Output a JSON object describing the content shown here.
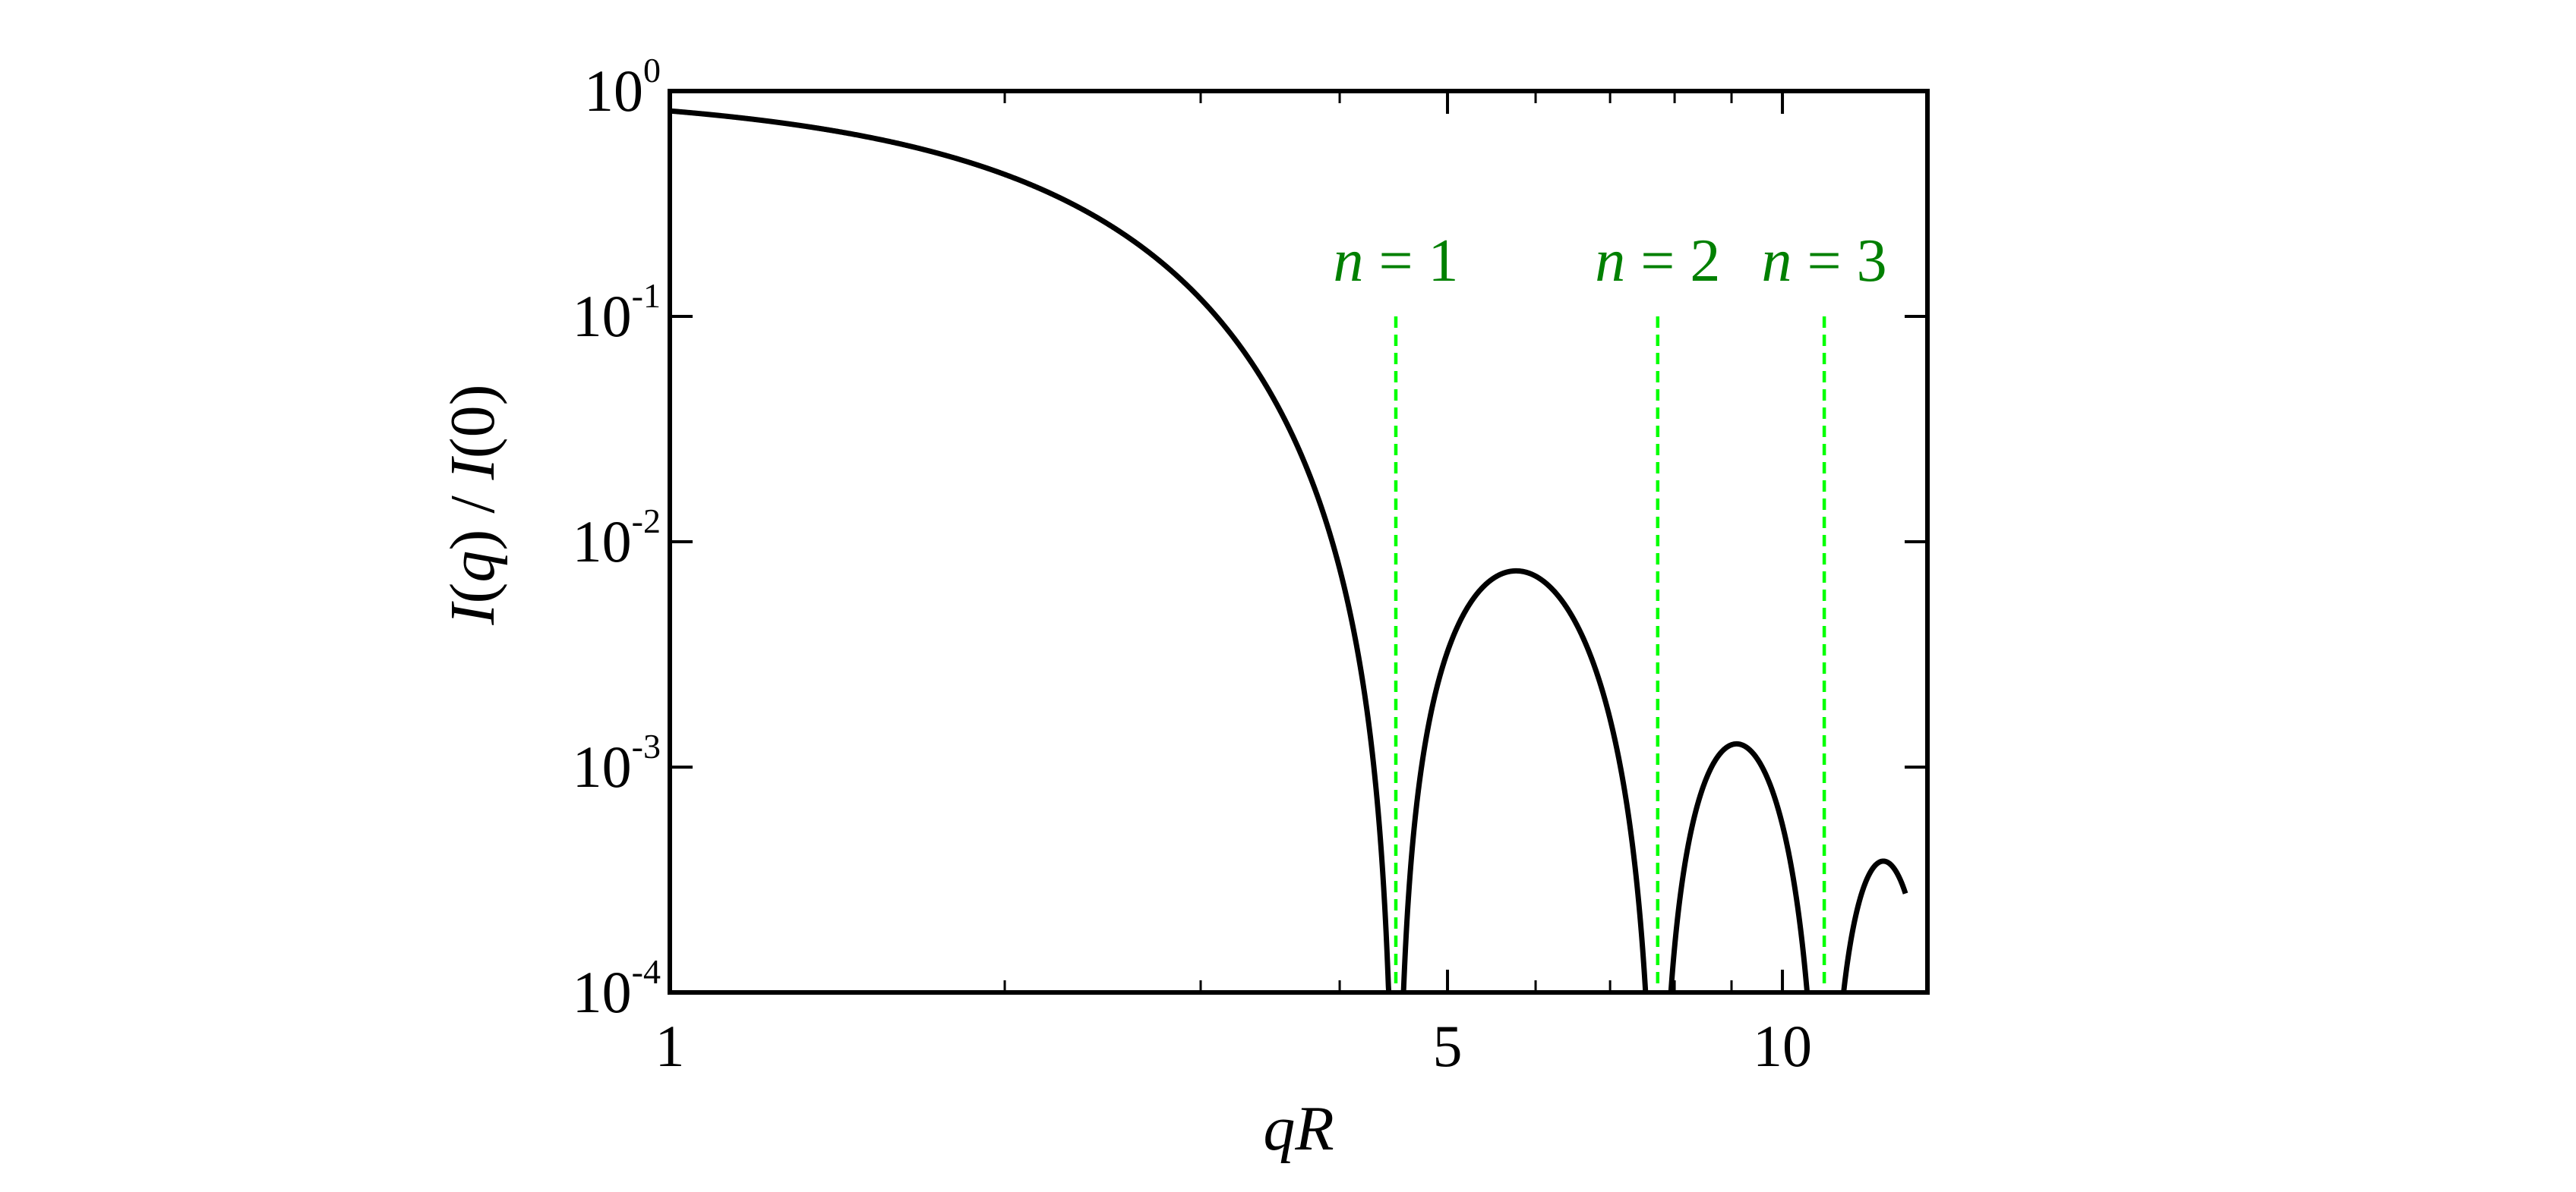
{
  "chart_data": {
    "type": "line",
    "title": "",
    "xlabel": {
      "var1": "q",
      "var2": "R"
    },
    "ylabel": {
      "f1": "I",
      "arg1": "q",
      "sep": " / ",
      "f2": "I",
      "arg2": "0"
    },
    "x_scale": "log",
    "y_scale": "log",
    "xlim": [
      1,
      13.5
    ],
    "ylim": [
      0.0001,
      1
    ],
    "x_ticks": [
      {
        "value": 1,
        "label": "1"
      },
      {
        "value": 5,
        "label": "5"
      },
      {
        "value": 10,
        "label": "10"
      }
    ],
    "x_minor_ticks": [
      2,
      3,
      4,
      6,
      7,
      8,
      9
    ],
    "y_ticks": [
      {
        "value": 1,
        "base": "10",
        "exp": "0"
      },
      {
        "value": 0.1,
        "base": "10",
        "exp": "-1"
      },
      {
        "value": 0.01,
        "base": "10",
        "exp": "-2"
      },
      {
        "value": 0.001,
        "base": "10",
        "exp": "-3"
      },
      {
        "value": 0.0001,
        "base": "10",
        "exp": "-4"
      }
    ],
    "grid": false,
    "series": [
      {
        "function": "sphere_form_factor",
        "color": "#000000",
        "x_range": [
          1,
          12.9
        ],
        "floor": 0.0001
      }
    ],
    "annotations": [
      {
        "x": 4.493,
        "y_top": 0.1,
        "var": "n",
        "eq": " = ",
        "num": "1",
        "color": "#00ff00",
        "text_color": "#008000"
      },
      {
        "x": 7.725,
        "y_top": 0.1,
        "var": "n",
        "eq": " = ",
        "num": "2",
        "color": "#00ff00",
        "text_color": "#008000"
      },
      {
        "x": 10.904,
        "y_top": 0.1,
        "var": "n",
        "eq": " = ",
        "num": "3",
        "color": "#00ff00",
        "text_color": "#008000"
      }
    ]
  }
}
